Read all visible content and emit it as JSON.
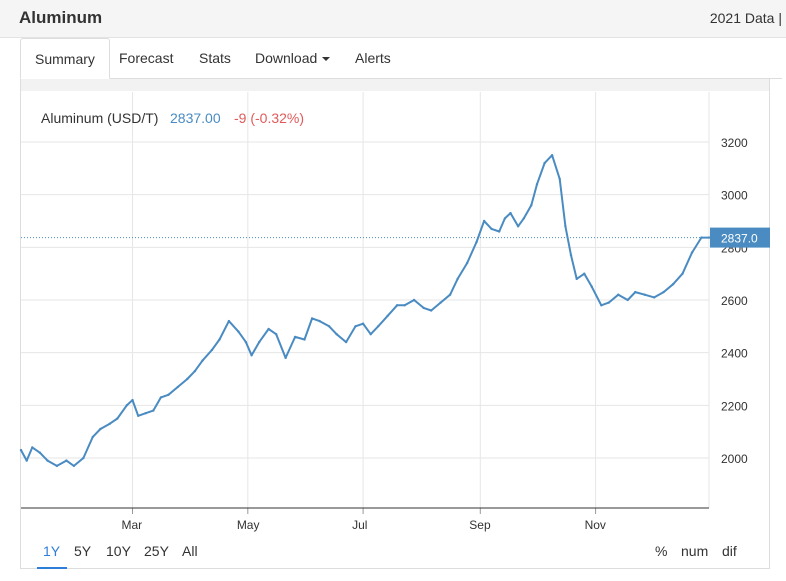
{
  "header": {
    "title": "Aluminum",
    "right_text": "2021 Data |"
  },
  "tabs": [
    {
      "label": "Summary",
      "active": true
    },
    {
      "label": "Forecast"
    },
    {
      "label": "Stats"
    },
    {
      "label": "Download",
      "dropdown": true
    },
    {
      "label": "Alerts"
    }
  ],
  "legend": {
    "name": "Aluminum (USD/T)",
    "value": "2837.00",
    "change": "-9 (-0.32%)"
  },
  "colors": {
    "line": "#4a8bc2",
    "value_text": "#4a8bc2",
    "change_text": "#e05a5a",
    "accent": "#2f7ed8",
    "grid": "#e6e6e6"
  },
  "ranges": [
    {
      "label": "1Y",
      "active": true
    },
    {
      "label": "5Y"
    },
    {
      "label": "10Y"
    },
    {
      "label": "25Y"
    },
    {
      "label": "All"
    }
  ],
  "modes": [
    "%",
    "num",
    "dif"
  ],
  "chart_data": {
    "type": "line",
    "series": [
      {
        "name": "Aluminum (USD/T)"
      }
    ],
    "x_tick_labels": [
      "Mar",
      "May",
      "Jul",
      "Sep",
      "Nov"
    ],
    "y_ticks": [
      2000,
      2200,
      2400,
      2600,
      2800,
      3000,
      3200
    ],
    "ylim": [
      1810,
      3390
    ],
    "last_value_label": "2837.0",
    "grid": true,
    "x": [
      "Jan 1",
      "Jan 4",
      "Jan 7",
      "Jan 11",
      "Jan 15",
      "Jan 20",
      "Jan 25",
      "Jan 29",
      "Feb 3",
      "Feb 8",
      "Feb 12",
      "Feb 17",
      "Feb 21",
      "Feb 26",
      "Mar 1",
      "Mar 4",
      "Mar 8",
      "Mar 12",
      "Mar 16",
      "Mar 20",
      "Mar 25",
      "Mar 30",
      "Apr 3",
      "Apr 7",
      "Apr 12",
      "Apr 16",
      "Apr 21",
      "Apr 26",
      "Apr 30",
      "May 3",
      "May 7",
      "May 12",
      "May 16",
      "May 21",
      "May 26",
      "May 31",
      "Jun 4",
      "Jun 8",
      "Jun 13",
      "Jun 17",
      "Jun 22",
      "Jun 27",
      "Jul 1",
      "Jul 5",
      "Jul 9",
      "Jul 14",
      "Jul 19",
      "Jul 23",
      "Jul 28",
      "Aug 2",
      "Aug 6",
      "Aug 11",
      "Aug 16",
      "Aug 20",
      "Aug 25",
      "Aug 30",
      "Sep 3",
      "Sep 7",
      "Sep 11",
      "Sep 14",
      "Sep 17",
      "Sep 21",
      "Sep 24",
      "Sep 28",
      "Oct 1",
      "Oct 5",
      "Oct 9",
      "Oct 13",
      "Oct 16",
      "Oct 19",
      "Oct 22",
      "Oct 26",
      "Oct 30",
      "Nov 4",
      "Nov 8",
      "Nov 13",
      "Nov 18",
      "Nov 22",
      "Nov 27",
      "Dec 2",
      "Dec 7",
      "Dec 12",
      "Dec 17",
      "Dec 22",
      "Dec 27",
      "Dec 31"
    ],
    "values": [
      2030,
      1990,
      2040,
      2020,
      1990,
      1970,
      1990,
      1970,
      2000,
      2080,
      2110,
      2130,
      2150,
      2200,
      2220,
      2160,
      2170,
      2180,
      2230,
      2240,
      2270,
      2300,
      2330,
      2370,
      2410,
      2450,
      2520,
      2480,
      2440,
      2390,
      2440,
      2490,
      2470,
      2380,
      2460,
      2450,
      2530,
      2520,
      2500,
      2470,
      2440,
      2500,
      2510,
      2470,
      2500,
      2540,
      2580,
      2580,
      2600,
      2570,
      2560,
      2590,
      2620,
      2680,
      2740,
      2820,
      2900,
      2870,
      2860,
      2910,
      2930,
      2880,
      2910,
      2960,
      3040,
      3120,
      3150,
      3060,
      2880,
      2770,
      2680,
      2700,
      2650,
      2580,
      2590,
      2620,
      2600,
      2630,
      2620,
      2610,
      2630,
      2660,
      2700,
      2780,
      2837,
      2837
    ]
  }
}
